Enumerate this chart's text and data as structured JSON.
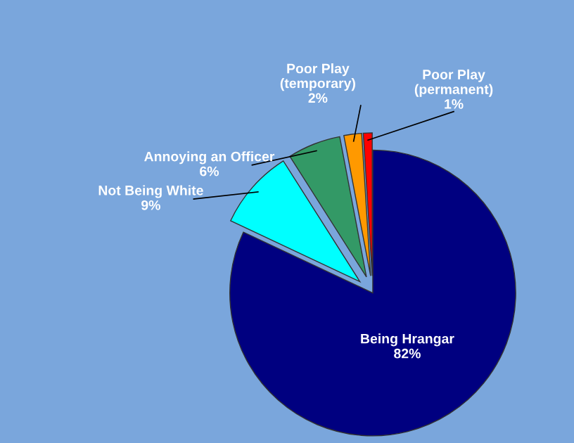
{
  "chart_data": {
    "type": "pie",
    "categories": [
      "Being Hrangar",
      "Not Being White",
      "Annoying an Officer",
      "Poor Play\n(temporary)",
      "Poor Play\n(permanent)"
    ],
    "values": [
      82,
      9,
      6,
      2,
      1
    ],
    "value_labels": [
      "82%",
      "9%",
      "6%",
      "2%",
      "1%"
    ],
    "colors": [
      "#000080",
      "#00ffff",
      "#339966",
      "#ff9900",
      "#ff0000"
    ],
    "legend": false
  }
}
